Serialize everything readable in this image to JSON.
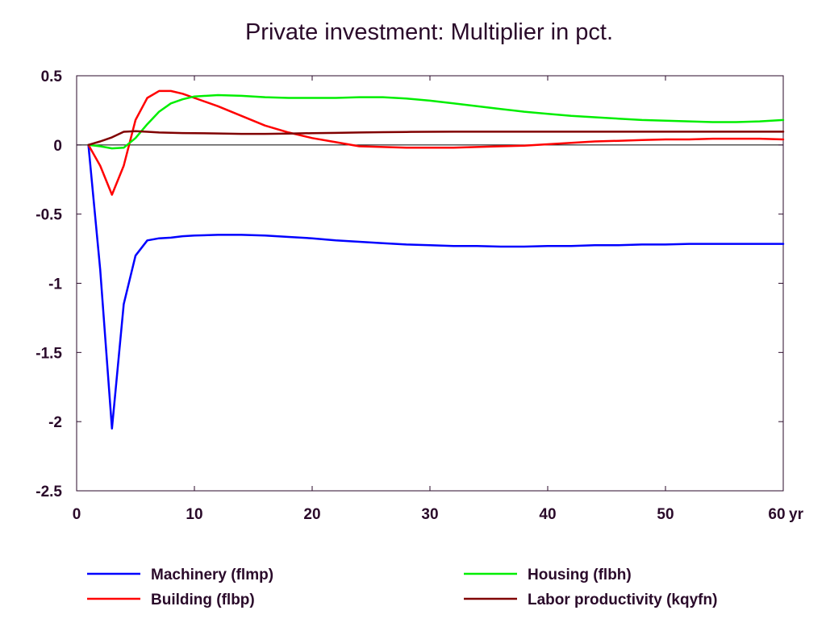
{
  "chart_data": {
    "type": "line",
    "title": "Private investment: Multiplier in pct.",
    "xlabel": "",
    "ylabel": "",
    "x_unit": "yr",
    "xlim": [
      0,
      60
    ],
    "ylim": [
      -2.5,
      0.5
    ],
    "x_ticks": [
      0,
      10,
      20,
      30,
      40,
      50,
      60
    ],
    "y_ticks": [
      0.5,
      0,
      -0.5,
      -1,
      -1.5,
      -2,
      -2.5
    ],
    "zero_line": true,
    "grid": false,
    "legend_position": "bottom",
    "series": [
      {
        "name": "Machinery (flmp)",
        "color": "#0000ff",
        "x": [
          1,
          2,
          3,
          4,
          5,
          6,
          7,
          8,
          9,
          10,
          12,
          14,
          16,
          18,
          20,
          22,
          24,
          26,
          28,
          30,
          32,
          34,
          36,
          38,
          40,
          42,
          44,
          46,
          48,
          50,
          52,
          54,
          56,
          58,
          60
        ],
        "y": [
          0,
          -0.9,
          -2.05,
          -1.15,
          -0.8,
          -0.69,
          -0.675,
          -0.67,
          -0.66,
          -0.655,
          -0.65,
          -0.65,
          -0.655,
          -0.665,
          -0.675,
          -0.69,
          -0.7,
          -0.71,
          -0.72,
          -0.725,
          -0.73,
          -0.73,
          -0.735,
          -0.735,
          -0.73,
          -0.73,
          -0.725,
          -0.725,
          -0.72,
          -0.72,
          -0.715,
          -0.715,
          -0.715,
          -0.715,
          -0.715
        ]
      },
      {
        "name": "Building (flbp)",
        "color": "#ff0000",
        "x": [
          1,
          2,
          3,
          4,
          5,
          6,
          7,
          8,
          9,
          10,
          12,
          14,
          16,
          18,
          20,
          22,
          24,
          26,
          28,
          30,
          32,
          34,
          36,
          38,
          40,
          42,
          44,
          46,
          48,
          50,
          52,
          54,
          56,
          58,
          60
        ],
        "y": [
          0,
          -0.15,
          -0.36,
          -0.15,
          0.18,
          0.34,
          0.39,
          0.39,
          0.37,
          0.34,
          0.28,
          0.21,
          0.14,
          0.09,
          0.05,
          0.02,
          -0.01,
          -0.015,
          -0.02,
          -0.02,
          -0.02,
          -0.015,
          -0.01,
          -0.005,
          0.005,
          0.015,
          0.025,
          0.03,
          0.035,
          0.04,
          0.04,
          0.045,
          0.045,
          0.045,
          0.04
        ]
      },
      {
        "name": "Housing (flbh)",
        "color": "#00ee00",
        "x": [
          1,
          2,
          3,
          4,
          5,
          6,
          7,
          8,
          9,
          10,
          12,
          14,
          16,
          18,
          20,
          22,
          24,
          26,
          28,
          30,
          32,
          34,
          36,
          38,
          40,
          42,
          44,
          46,
          48,
          50,
          52,
          54,
          56,
          58,
          60
        ],
        "y": [
          0,
          -0.01,
          -0.025,
          -0.02,
          0.05,
          0.15,
          0.24,
          0.3,
          0.33,
          0.35,
          0.36,
          0.355,
          0.345,
          0.34,
          0.34,
          0.34,
          0.345,
          0.345,
          0.335,
          0.32,
          0.3,
          0.28,
          0.26,
          0.24,
          0.225,
          0.21,
          0.2,
          0.19,
          0.18,
          0.175,
          0.17,
          0.165,
          0.165,
          0.17,
          0.18
        ]
      },
      {
        "name": "Labor productivity (kqyfn)",
        "color": "#800000",
        "x": [
          1,
          2,
          3,
          4,
          5,
          6,
          7,
          8,
          9,
          10,
          12,
          14,
          16,
          18,
          20,
          22,
          24,
          26,
          28,
          30,
          32,
          34,
          36,
          38,
          40,
          42,
          44,
          46,
          48,
          50,
          52,
          54,
          56,
          58,
          60
        ],
        "y": [
          0,
          0.025,
          0.055,
          0.095,
          0.1,
          0.095,
          0.09,
          0.088,
          0.086,
          0.085,
          0.083,
          0.08,
          0.08,
          0.082,
          0.085,
          0.087,
          0.09,
          0.092,
          0.094,
          0.095,
          0.096,
          0.096,
          0.096,
          0.096,
          0.096,
          0.096,
          0.096,
          0.096,
          0.096,
          0.096,
          0.096,
          0.096,
          0.096,
          0.096,
          0.096
        ]
      }
    ]
  },
  "colors": {
    "text": "#2a0a2a",
    "axis": "#2a0a2a",
    "zero_line": "#000000",
    "background": "#ffffff"
  }
}
